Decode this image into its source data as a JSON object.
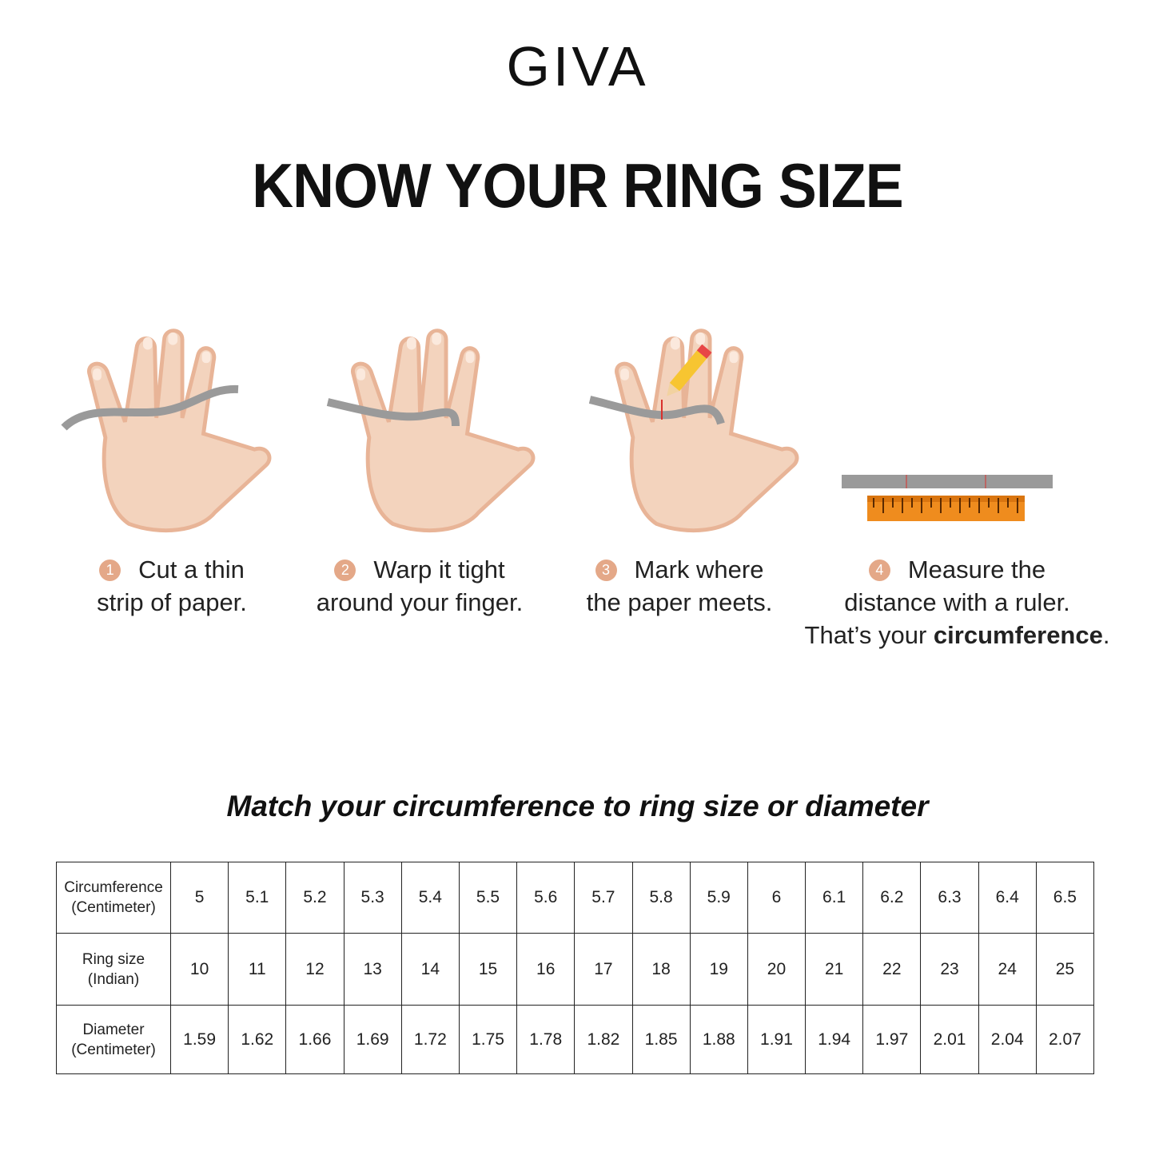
{
  "brand": "GIVA",
  "title": "KNOW YOUR RING SIZE",
  "steps": [
    {
      "number": "1",
      "line1": "Cut a thin",
      "line2": "strip of paper.",
      "icon": "hand-paper-strip"
    },
    {
      "number": "2",
      "line1": "Warp it tight",
      "line2": "around your finger.",
      "icon": "hand-paper-wrapped"
    },
    {
      "number": "3",
      "line1": "Mark where",
      "line2": "the paper meets.",
      "icon": "hand-pencil-mark"
    },
    {
      "number": "4",
      "line1": "Measure the",
      "line2": "distance with a ruler.",
      "line3_pre": "That’s your ",
      "line3_bold": "circumference",
      "line3_post": ".",
      "icon": "ruler"
    }
  ],
  "subtitle": "Match your circumference to ring size or diameter",
  "table": {
    "rows": [
      {
        "h1": "Circumference",
        "h2": "(Centimeter)",
        "values": [
          "5",
          "5.1",
          "5.2",
          "5.3",
          "5.4",
          "5.5",
          "5.6",
          "5.7",
          "5.8",
          "5.9",
          "6",
          "6.1",
          "6.2",
          "6.3",
          "6.4",
          "6.5"
        ]
      },
      {
        "h1": "Ring size",
        "h2": "(Indian)",
        "values": [
          "10",
          "11",
          "12",
          "13",
          "14",
          "15",
          "16",
          "17",
          "18",
          "19",
          "20",
          "21",
          "22",
          "23",
          "24",
          "25"
        ]
      },
      {
        "h1": "Diameter",
        "h2": "(Centimeter)",
        "values": [
          "1.59",
          "1.62",
          "1.66",
          "1.69",
          "1.72",
          "1.75",
          "1.78",
          "1.82",
          "1.85",
          "1.88",
          "1.91",
          "1.94",
          "1.97",
          "2.01",
          "2.04",
          "2.07"
        ]
      }
    ]
  },
  "colors": {
    "skin": "#f3d3bd",
    "skin_shadow": "#e8b497",
    "step_badge": "#e4a888",
    "paper": "#9a9a9a",
    "ruler": "#ef8c1e",
    "mark": "#d9302c"
  }
}
